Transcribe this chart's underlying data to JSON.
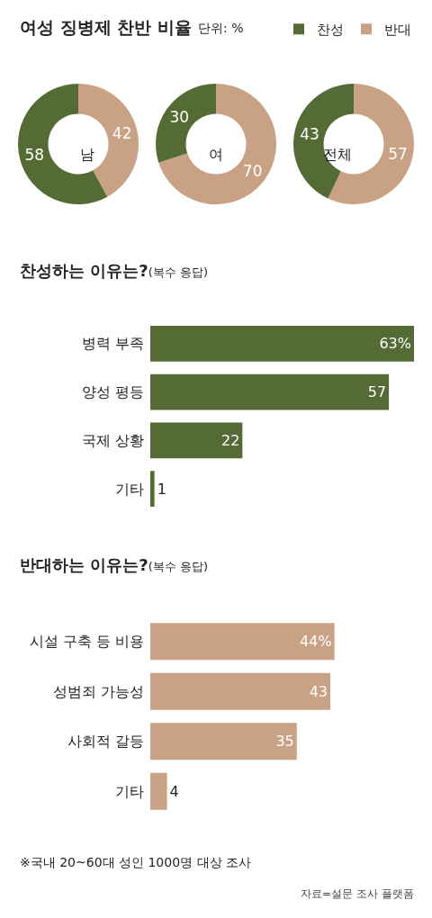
{
  "chart_data": [
    {
      "type": "donut",
      "title": "여성 징병제 찬반 비율",
      "categories": [
        "찬성",
        "반대"
      ],
      "values": [
        58,
        42
      ],
      "colors": [
        "#556b35",
        "#c9a184"
      ],
      "data_labels": true,
      "legend": "top right",
      "annotations": [
        "남"
      ]
    },
    {
      "type": "donut",
      "subtitle": "단위: %",
      "categories": [
        null,
        null
      ],
      "values": [
        30,
        70
      ],
      "colors": [
        "#556b35",
        "#c9a184"
      ],
      "data_labels": true,
      "annotations": [
        "여"
      ]
    },
    {
      "type": "donut",
      "categories": [
        null,
        null
      ],
      "values": [
        43,
        57
      ],
      "colors": [
        "#556b35",
        "#c9a184"
      ],
      "data_labels": true,
      "annotations": [
        "전체"
      ]
    },
    {
      "type": "bar",
      "orientation": "horizontal",
      "title": "찬성하는 이유는?",
      "subtitle": "(복수 응답)",
      "categories": [
        "병력 부족",
        "양성 평등",
        "국제 상황",
        "기타"
      ],
      "values": [
        63,
        57,
        22,
        1
      ],
      "value_labels": [
        "63%",
        "57",
        "22",
        "1"
      ],
      "color": "#556b35",
      "tick_labels": "y"
    },
    {
      "type": "bar",
      "orientation": "horizontal",
      "title": "반대하는 이유는?",
      "subtitle": "(복수 응답)",
      "categories": [
        "시설 구축 등 비용",
        "성범죄 가능성",
        "사회적 갈등",
        "기타"
      ],
      "values": [
        44,
        43,
        35,
        4
      ],
      "value_labels": [
        "44%",
        "43",
        "35",
        "4"
      ],
      "color": "#c9a184",
      "tick_labels": "y",
      "annotations": [
        "※국내 20~60대 성인 1000명 대상 조사",
        "자료=설문 조사 플랫폼"
      ]
    }
  ]
}
